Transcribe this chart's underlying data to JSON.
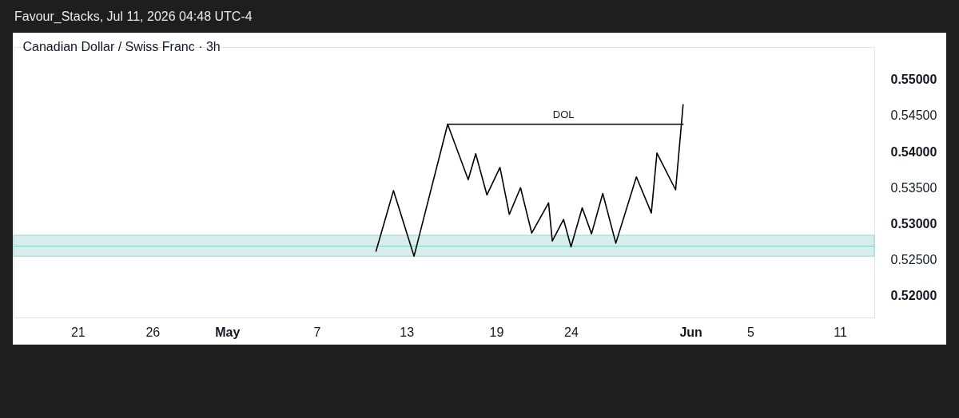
{
  "chart_data": {
    "type": "line",
    "title": "Canadian Dollar / Swiss Franc · 3h",
    "annotations": [
      "Favour_Stacks, Jul 11, 2026 04:48 UTC-4",
      {
        "text": "DOL",
        "x": "2026-05-23T12:00",
        "y": 0.5438
      }
    ],
    "series": [
      {
        "color": "#000000",
        "x": [
          "2026-05-10T23:00",
          "2026-05-12T03:00",
          "2026-05-13T12:00",
          "2026-05-15T18:00",
          "2026-05-17T03:00",
          "2026-05-17T15:00",
          "2026-05-18T09:00",
          "2026-05-19T06:00",
          "2026-05-19T21:00",
          "2026-05-20T15:00",
          "2026-05-21T09:00",
          "2026-05-22T12:00",
          "2026-05-22T18:00",
          "2026-05-23T12:00",
          "2026-05-24T00:00",
          "2026-05-24T18:00",
          "2026-05-25T09:00",
          "2026-05-26T03:00",
          "2026-05-27T00:00",
          "2026-05-28T09:00",
          "2026-05-29T09:00",
          "2026-05-29T18:00",
          "2026-05-31T00:00",
          "2026-05-31T12:00"
        ],
        "values": [
          0.5262,
          0.5346,
          0.5255,
          0.5438,
          0.5361,
          0.5397,
          0.534,
          0.5378,
          0.5313,
          0.535,
          0.5287,
          0.5329,
          0.5276,
          0.5306,
          0.5268,
          0.5322,
          0.5286,
          0.5342,
          0.5273,
          0.5365,
          0.5315,
          0.5398,
          0.5347,
          0.5465
        ]
      },
      {
        "type": "line",
        "color": "#000000",
        "x": [
          "2026-05-15T18:00",
          "2026-05-31T12:00"
        ],
        "values": [
          0.5438,
          0.5438
        ]
      }
    ],
    "bands": [
      {
        "axis": "y",
        "from": 0.5255,
        "to": 0.5269,
        "color": "#cdebe8"
      },
      {
        "axis": "y",
        "from": 0.5269,
        "to": 0.5284,
        "color": "#cdebe8"
      }
    ],
    "xlim": [
      "2026-04-16T17:00",
      "2026-06-13T07:00"
    ],
    "xticks": [
      {
        "value": "2026-04-21",
        "label": "21"
      },
      {
        "value": "2026-04-26",
        "label": "26"
      },
      {
        "value": "2026-05-01",
        "label": "May"
      },
      {
        "value": "2026-05-07",
        "label": "7"
      },
      {
        "value": "2026-05-13",
        "label": "13"
      },
      {
        "value": "2026-05-19",
        "label": "19"
      },
      {
        "value": "2026-05-24",
        "label": "24"
      },
      {
        "value": "2026-06-01",
        "label": "Jun"
      },
      {
        "value": "2026-06-05",
        "label": "5"
      },
      {
        "value": "2026-06-11",
        "label": "11"
      }
    ],
    "ylim": [
      0.517,
      0.5545
    ],
    "yticks": [
      {
        "value": 0.52,
        "label": "0.52000"
      },
      {
        "value": 0.525,
        "label": "0.52500"
      },
      {
        "value": 0.53,
        "label": "0.53000"
      },
      {
        "value": 0.535,
        "label": "0.53500"
      },
      {
        "value": 0.54,
        "label": "0.54000"
      },
      {
        "value": 0.545,
        "label": "0.54500"
      },
      {
        "value": 0.55,
        "label": "0.55000"
      }
    ],
    "grid": false,
    "marker": "none",
    "line_style": "solid"
  }
}
